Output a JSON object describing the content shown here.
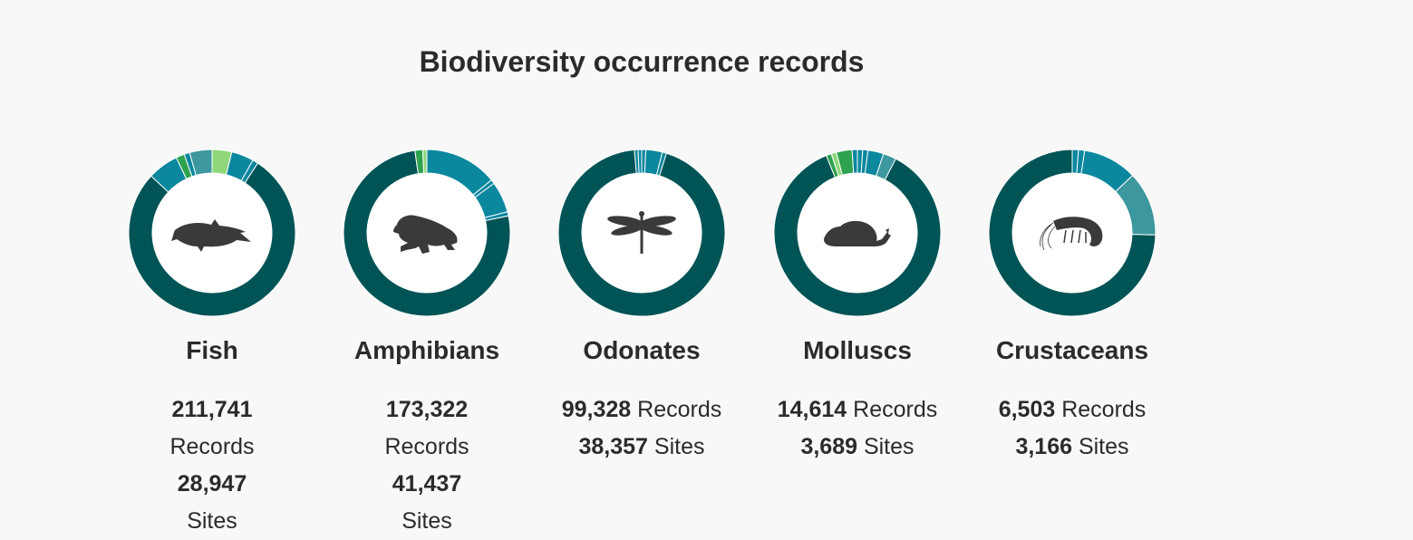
{
  "page": {
    "title": "Biodiversity occurrence records"
  },
  "colors": {
    "main": "#005456",
    "teal": "#0b879e",
    "teal_light": "#3c979e",
    "green": "#2fa24f",
    "green_light": "#90d77c"
  },
  "chart_data": [
    {
      "type": "pie",
      "name": "Fish",
      "icon": "fish-icon",
      "records": "211,741",
      "records_label": "Records",
      "sites": "28,947",
      "sites_label": "Sites",
      "slices": [
        {
          "value": 3.5,
          "color": "#90d77c"
        },
        {
          "value": 4.0,
          "color": "#0b879e"
        },
        {
          "value": 1.0,
          "color": "#0b879e"
        },
        {
          "value": 71.5,
          "color": "#005456"
        },
        {
          "value": 5.5,
          "color": "#0b879e"
        },
        {
          "value": 1.5,
          "color": "#2fa24f"
        },
        {
          "value": 1.0,
          "color": "#0b879e"
        },
        {
          "value": 4.0,
          "color": "#3c979e"
        }
      ]
    },
    {
      "type": "pie",
      "name": "Amphibians",
      "icon": "frog-icon",
      "records": "173,322",
      "records_label": "Records",
      "sites": "41,437",
      "sites_label": "Sites",
      "slices": [
        {
          "value": 14.0,
          "color": "#0b879e"
        },
        {
          "value": 0.8,
          "color": "#0b879e"
        },
        {
          "value": 6.0,
          "color": "#0b879e"
        },
        {
          "value": 0.8,
          "color": "#0b879e"
        },
        {
          "value": 75.5,
          "color": "#005456"
        },
        {
          "value": 1.5,
          "color": "#2fa24f"
        },
        {
          "value": 0.8,
          "color": "#90d77c"
        }
      ]
    },
    {
      "type": "pie",
      "name": "Odonates",
      "icon": "dragonfly-icon",
      "records": "99,328",
      "records_label": "Records",
      "sites": "38,357",
      "sites_label": "Sites",
      "slices": [
        {
          "value": 0.8,
          "color": "#0b879e"
        },
        {
          "value": 3.2,
          "color": "#0b879e"
        },
        {
          "value": 0.8,
          "color": "#0b879e"
        },
        {
          "value": 93.8,
          "color": "#005456"
        },
        {
          "value": 0.7,
          "color": "#0b879e"
        },
        {
          "value": 0.7,
          "color": "#0b879e"
        }
      ]
    },
    {
      "type": "pie",
      "name": "Molluscs",
      "icon": "snail-icon",
      "records": "14,614",
      "records_label": "Records",
      "sites": "3,689",
      "sites_label": "Sites",
      "slices": [
        {
          "value": 1.0,
          "color": "#0b879e"
        },
        {
          "value": 1.0,
          "color": "#0b879e"
        },
        {
          "value": 3.0,
          "color": "#0b879e"
        },
        {
          "value": 2.5,
          "color": "#3c979e"
        },
        {
          "value": 85.0,
          "color": "#005456"
        },
        {
          "value": 1.0,
          "color": "#2fa24f"
        },
        {
          "value": 1.0,
          "color": "#90d77c"
        },
        {
          "value": 3.0,
          "color": "#2fa24f"
        },
        {
          "value": 1.0,
          "color": "#0b879e"
        }
      ]
    },
    {
      "type": "pie",
      "name": "Crustaceans",
      "icon": "shrimp-icon",
      "records": "6,503",
      "records_label": "Records",
      "sites": "3,166",
      "sites_label": "Sites",
      "slices": [
        {
          "value": 1.2,
          "color": "#0b879e"
        },
        {
          "value": 1.2,
          "color": "#0b879e"
        },
        {
          "value": 10.5,
          "color": "#0b879e"
        },
        {
          "value": 12.5,
          "color": "#3c979e"
        },
        {
          "value": 74.6,
          "color": "#005456"
        }
      ]
    }
  ]
}
